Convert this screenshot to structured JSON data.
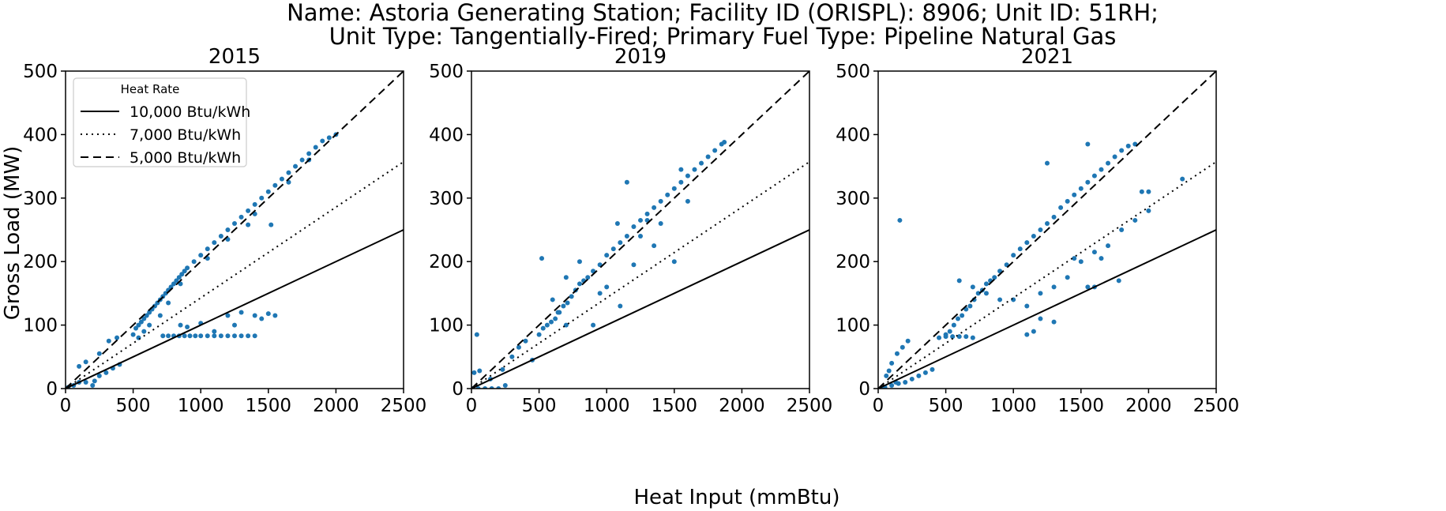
{
  "figure": {
    "title_line1": "Name: Astoria Generating Station; Facility ID (ORISPL): 8906; Unit ID: 51RH;",
    "title_line2": "Unit Type: Tangentially-Fired; Primary Fuel Type: Pipeline Natural Gas",
    "xlabel": "Heat Input (mmBtu)",
    "ylabel": "Gross Load (MW)"
  },
  "legend": {
    "title": "Heat Rate",
    "entries": [
      {
        "label": "10,000 Btu/kWh",
        "style": "solid",
        "heat_rate": 10000
      },
      {
        "label": "7,000 Btu/kWh",
        "style": "dotted",
        "heat_rate": 7000
      },
      {
        "label": "5,000 Btu/kWh",
        "style": "dashed",
        "heat_rate": 5000
      }
    ]
  },
  "colors": {
    "points": "#1f77b4",
    "lines": "#000000"
  },
  "chart_data": [
    {
      "type": "scatter",
      "title": "2015",
      "xlim": [
        0,
        2500
      ],
      "ylim": [
        0,
        500
      ],
      "xticks": [
        0,
        500,
        1000,
        1500,
        2000,
        2500
      ],
      "yticks": [
        0,
        100,
        200,
        300,
        400,
        500
      ],
      "legend_position": "upper-left",
      "points": [
        [
          20,
          2
        ],
        [
          60,
          5
        ],
        [
          100,
          10
        ],
        [
          150,
          10
        ],
        [
          200,
          5
        ],
        [
          215,
          12
        ],
        [
          250,
          20
        ],
        [
          300,
          25
        ],
        [
          350,
          32
        ],
        [
          400,
          38
        ],
        [
          100,
          35
        ],
        [
          150,
          42
        ],
        [
          250,
          55
        ],
        [
          320,
          75
        ],
        [
          380,
          80
        ],
        [
          500,
          85
        ],
        [
          520,
          95
        ],
        [
          540,
          100
        ],
        [
          560,
          105
        ],
        [
          580,
          110
        ],
        [
          600,
          115
        ],
        [
          620,
          120
        ],
        [
          640,
          125
        ],
        [
          660,
          130
        ],
        [
          680,
          135
        ],
        [
          700,
          140
        ],
        [
          720,
          145
        ],
        [
          740,
          150
        ],
        [
          760,
          155
        ],
        [
          780,
          160
        ],
        [
          800,
          165
        ],
        [
          820,
          170
        ],
        [
          840,
          175
        ],
        [
          860,
          180
        ],
        [
          880,
          185
        ],
        [
          900,
          190
        ],
        [
          950,
          200
        ],
        [
          1000,
          210
        ],
        [
          1050,
          220
        ],
        [
          1100,
          230
        ],
        [
          1150,
          240
        ],
        [
          1200,
          250
        ],
        [
          1250,
          260
        ],
        [
          1300,
          270
        ],
        [
          1350,
          280
        ],
        [
          1400,
          290
        ],
        [
          1450,
          300
        ],
        [
          1500,
          310
        ],
        [
          1550,
          320
        ],
        [
          1600,
          330
        ],
        [
          1650,
          340
        ],
        [
          1700,
          350
        ],
        [
          1750,
          360
        ],
        [
          1800,
          370
        ],
        [
          1850,
          380
        ],
        [
          1900,
          390
        ],
        [
          1950,
          395
        ],
        [
          2000,
          400
        ],
        [
          540,
          80
        ],
        [
          580,
          90
        ],
        [
          620,
          100
        ],
        [
          700,
          115
        ],
        [
          760,
          135
        ],
        [
          850,
          165
        ],
        [
          1050,
          205
        ],
        [
          1200,
          235
        ],
        [
          1400,
          275
        ],
        [
          1350,
          258
        ],
        [
          1520,
          258
        ],
        [
          1650,
          325
        ],
        [
          1800,
          360
        ],
        [
          720,
          83
        ],
        [
          760,
          83
        ],
        [
          800,
          83
        ],
        [
          840,
          83
        ],
        [
          880,
          83
        ],
        [
          920,
          83
        ],
        [
          960,
          83
        ],
        [
          1000,
          83
        ],
        [
          1050,
          83
        ],
        [
          1100,
          83
        ],
        [
          1150,
          83
        ],
        [
          1200,
          83
        ],
        [
          1250,
          83
        ],
        [
          1300,
          83
        ],
        [
          1350,
          83
        ],
        [
          1400,
          83
        ],
        [
          850,
          100
        ],
        [
          900,
          97
        ],
        [
          1000,
          103
        ],
        [
          1100,
          90
        ],
        [
          1200,
          115
        ],
        [
          1250,
          100
        ],
        [
          1300,
          120
        ],
        [
          1400,
          115
        ],
        [
          1450,
          110
        ],
        [
          1500,
          118
        ],
        [
          1550,
          115
        ]
      ]
    },
    {
      "type": "scatter",
      "title": "2019",
      "xlim": [
        0,
        2500
      ],
      "ylim": [
        0,
        500
      ],
      "xticks": [
        0,
        500,
        1000,
        1500,
        2000,
        2500
      ],
      "yticks": [
        0,
        100,
        200,
        300,
        400,
        500
      ],
      "points": [
        [
          10,
          0
        ],
        [
          50,
          0
        ],
        [
          100,
          0
        ],
        [
          150,
          0
        ],
        [
          200,
          0
        ],
        [
          250,
          5
        ],
        [
          20,
          25
        ],
        [
          60,
          28
        ],
        [
          40,
          85
        ],
        [
          140,
          15
        ],
        [
          230,
          30
        ],
        [
          300,
          50
        ],
        [
          350,
          65
        ],
        [
          400,
          75
        ],
        [
          450,
          45
        ],
        [
          500,
          85
        ],
        [
          530,
          95
        ],
        [
          560,
          100
        ],
        [
          590,
          105
        ],
        [
          620,
          110
        ],
        [
          650,
          120
        ],
        [
          680,
          130
        ],
        [
          710,
          135
        ],
        [
          740,
          145
        ],
        [
          770,
          155
        ],
        [
          800,
          165
        ],
        [
          830,
          170
        ],
        [
          860,
          175
        ],
        [
          900,
          185
        ],
        [
          950,
          195
        ],
        [
          1000,
          210
        ],
        [
          1050,
          220
        ],
        [
          1100,
          230
        ],
        [
          1150,
          240
        ],
        [
          1200,
          255
        ],
        [
          1250,
          265
        ],
        [
          1300,
          275
        ],
        [
          1350,
          285
        ],
        [
          1400,
          295
        ],
        [
          1450,
          305
        ],
        [
          1500,
          315
        ],
        [
          1550,
          325
        ],
        [
          1600,
          335
        ],
        [
          1650,
          345
        ],
        [
          1700,
          355
        ],
        [
          1750,
          365
        ],
        [
          1800,
          375
        ],
        [
          1850,
          385
        ],
        [
          1870,
          388
        ],
        [
          520,
          205
        ],
        [
          640,
          120
        ],
        [
          700,
          100
        ],
        [
          900,
          100
        ],
        [
          1080,
          260
        ],
        [
          1150,
          325
        ],
        [
          1300,
          265
        ],
        [
          1500,
          200
        ],
        [
          1600,
          295
        ],
        [
          1200,
          195
        ],
        [
          1400,
          260
        ],
        [
          1550,
          345
        ],
        [
          800,
          200
        ],
        [
          1000,
          160
        ],
        [
          700,
          175
        ],
        [
          1100,
          130
        ],
        [
          1350,
          225
        ],
        [
          600,
          140
        ],
        [
          950,
          150
        ],
        [
          1250,
          240
        ]
      ]
    },
    {
      "type": "scatter",
      "title": "2021",
      "xlim": [
        0,
        2500
      ],
      "ylim": [
        0,
        500
      ],
      "xticks": [
        0,
        500,
        1000,
        1500,
        2000,
        2500
      ],
      "yticks": [
        0,
        100,
        200,
        300,
        400,
        500
      ],
      "points": [
        [
          20,
          0
        ],
        [
          50,
          2
        ],
        [
          100,
          5
        ],
        [
          150,
          8
        ],
        [
          200,
          10
        ],
        [
          250,
          15
        ],
        [
          300,
          20
        ],
        [
          350,
          25
        ],
        [
          400,
          30
        ],
        [
          60,
          20
        ],
        [
          100,
          40
        ],
        [
          140,
          55
        ],
        [
          180,
          65
        ],
        [
          220,
          75
        ],
        [
          80,
          28
        ],
        [
          130,
          10
        ],
        [
          160,
          265
        ],
        [
          450,
          80
        ],
        [
          500,
          85
        ],
        [
          530,
          90
        ],
        [
          560,
          100
        ],
        [
          590,
          110
        ],
        [
          620,
          115
        ],
        [
          650,
          125
        ],
        [
          680,
          130
        ],
        [
          710,
          140
        ],
        [
          740,
          150
        ],
        [
          770,
          155
        ],
        [
          800,
          165
        ],
        [
          830,
          170
        ],
        [
          860,
          175
        ],
        [
          900,
          185
        ],
        [
          950,
          195
        ],
        [
          1000,
          210
        ],
        [
          1050,
          220
        ],
        [
          1100,
          230
        ],
        [
          1150,
          240
        ],
        [
          1200,
          250
        ],
        [
          1250,
          260
        ],
        [
          1300,
          270
        ],
        [
          1350,
          285
        ],
        [
          1400,
          295
        ],
        [
          1450,
          305
        ],
        [
          1500,
          315
        ],
        [
          1550,
          325
        ],
        [
          1600,
          335
        ],
        [
          1650,
          345
        ],
        [
          1700,
          355
        ],
        [
          1750,
          365
        ],
        [
          1800,
          375
        ],
        [
          1850,
          382
        ],
        [
          1900,
          385
        ],
        [
          500,
          82
        ],
        [
          550,
          82
        ],
        [
          600,
          82
        ],
        [
          650,
          82
        ],
        [
          700,
          80
        ],
        [
          600,
          170
        ],
        [
          700,
          160
        ],
        [
          800,
          150
        ],
        [
          900,
          140
        ],
        [
          1000,
          140
        ],
        [
          1100,
          130
        ],
        [
          1200,
          150
        ],
        [
          1300,
          160
        ],
        [
          1400,
          175
        ],
        [
          1500,
          200
        ],
        [
          1600,
          215
        ],
        [
          1700,
          225
        ],
        [
          1800,
          250
        ],
        [
          1900,
          265
        ],
        [
          2000,
          280
        ],
        [
          2250,
          330
        ],
        [
          1950,
          310
        ],
        [
          1250,
          355
        ],
        [
          1550,
          385
        ],
        [
          1550,
          160
        ],
        [
          1650,
          205
        ],
        [
          1450,
          205
        ],
        [
          1200,
          110
        ],
        [
          1300,
          105
        ],
        [
          1150,
          90
        ],
        [
          1100,
          85
        ],
        [
          1600,
          160
        ],
        [
          1780,
          170
        ],
        [
          2000,
          310
        ]
      ]
    }
  ]
}
